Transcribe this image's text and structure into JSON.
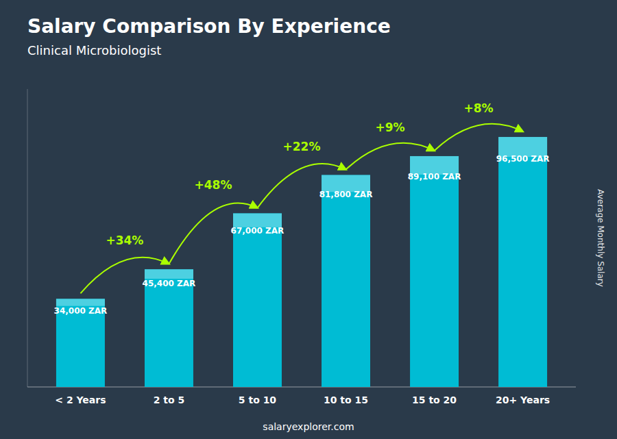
{
  "chart_data": {
    "type": "bar",
    "title": "Salary Comparison By Experience",
    "subtitle": "Clinical Microbiologist",
    "categories": [
      "< 2 Years",
      "2 to 5",
      "5 to 10",
      "10 to 15",
      "15 to 20",
      "20+ Years"
    ],
    "values": [
      34000,
      45400,
      67000,
      81800,
      89100,
      96500
    ],
    "value_labels": [
      "34,000 ZAR",
      "45,400 ZAR",
      "67,000 ZAR",
      "81,800 ZAR",
      "89,100 ZAR",
      "96,500 ZAR"
    ],
    "data_labels": true,
    "annotations": [
      "+34%",
      "+48%",
      "+22%",
      "+9%",
      "+8%"
    ],
    "color": "#00bcd4",
    "ylabel": "Average Monthly Salary",
    "footer": "salaryexplorer.com",
    "ylim": [
      0,
      115000
    ],
    "grid": false,
    "tick_labels": "x"
  }
}
